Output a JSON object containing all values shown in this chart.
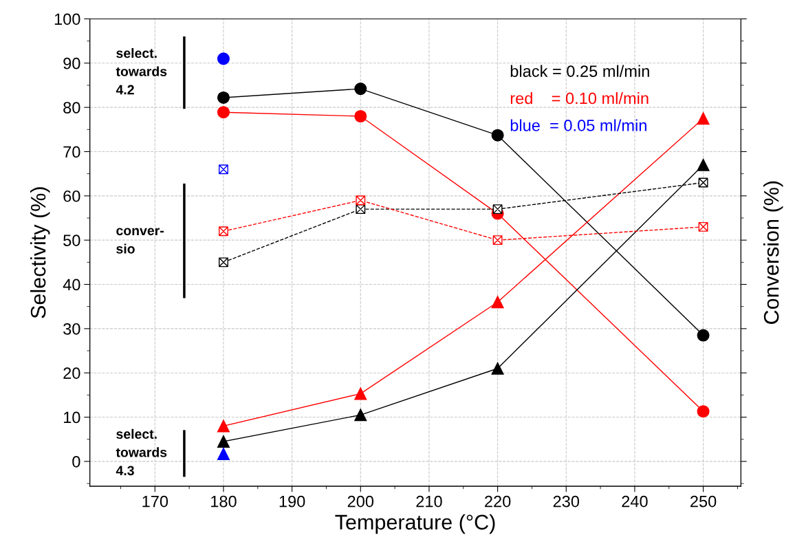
{
  "chart_data": {
    "type": "line",
    "xlabel": "Temperature (°C)",
    "ylabel": "Selectivity (%)",
    "y2label": "Conversion (%)",
    "xlim": [
      160.5,
      255.5
    ],
    "xticks": [
      170,
      180,
      190,
      200,
      210,
      220,
      230,
      240,
      250
    ],
    "ylim": [
      -5.6,
      100
    ],
    "yticks": [
      0,
      10,
      20,
      30,
      40,
      50,
      60,
      70,
      80,
      90,
      100
    ],
    "grid": true,
    "legend": false,
    "series": [
      {
        "color": "#000000",
        "marker": "circle",
        "line_style": "solid",
        "x": [
          180,
          200,
          220,
          250
        ],
        "values": [
          82.2,
          84.2,
          73.7,
          28.5
        ]
      },
      {
        "color": "#ff0000",
        "marker": "circle",
        "line_style": "solid",
        "x": [
          180,
          200,
          220,
          250
        ],
        "values": [
          78.9,
          78.0,
          56.0,
          11.3
        ]
      },
      {
        "color": "#0000ff",
        "marker": "circle",
        "line_style": "solid",
        "x": [
          180
        ],
        "values": [
          91
        ]
      },
      {
        "color": "#000000",
        "marker": "triangle",
        "line_style": "solid",
        "x": [
          180,
          200,
          220,
          250
        ],
        "values": [
          4.5,
          10.5,
          21.0,
          67.0
        ]
      },
      {
        "color": "#ff0000",
        "marker": "triangle",
        "line_style": "solid",
        "x": [
          180,
          200,
          220,
          250
        ],
        "values": [
          8.0,
          15.3,
          36.0,
          77.5
        ]
      },
      {
        "color": "#0000ff",
        "marker": "triangle",
        "line_style": "solid",
        "x": [
          180
        ],
        "values": [
          1.7
        ]
      },
      {
        "color": "#000000",
        "marker": "cross",
        "line_style": "dashed",
        "x": [
          180,
          200,
          220,
          250
        ],
        "values": [
          45,
          57,
          57,
          63
        ]
      },
      {
        "color": "#ff0000",
        "marker": "cross",
        "line_style": "dashed",
        "x": [
          180,
          200,
          220,
          250
        ],
        "values": [
          52,
          59,
          50,
          53
        ]
      },
      {
        "color": "#0000ff",
        "marker": "cross",
        "line_style": "dashed",
        "x": [
          180
        ],
        "values": [
          66
        ]
      }
    ],
    "annotations": [
      "black = 0.25 ml/min",
      "red    = 0.10 ml/min",
      "blue  = 0.05 ml/min",
      "select.\ntowards\n4.2",
      "conver-\nsio",
      "select.\ntowards\n4.3"
    ]
  }
}
